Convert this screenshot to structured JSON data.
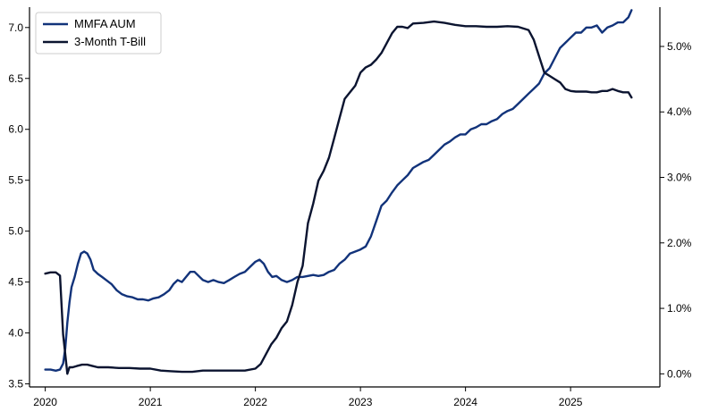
{
  "chart_data": {
    "type": "line",
    "title": "",
    "xlabel": "",
    "ylabel_left": "",
    "ylabel_right": "",
    "x_ticks": [
      "2020",
      "2021",
      "2022",
      "2023",
      "2024",
      "2025"
    ],
    "x_range": [
      2019.85,
      2025.85
    ],
    "y_left_ticks": [
      "3.5",
      "4.0",
      "4.5",
      "5.0",
      "5.5",
      "6.0",
      "6.5",
      "7.0"
    ],
    "y_left_range": [
      3.47,
      7.2
    ],
    "y_right_ticks": [
      "0.0%",
      "1.0%",
      "2.0%",
      "3.0%",
      "4.0%",
      "5.0%"
    ],
    "y_right_range": [
      -0.2,
      5.6
    ],
    "legend_position": "top-left",
    "grid": false,
    "series": [
      {
        "name": "MMFA AUM",
        "axis": "left",
        "color": "#12337a",
        "x": [
          2020.0,
          2020.05,
          2020.1,
          2020.14,
          2020.17,
          2020.19,
          2020.21,
          2020.23,
          2020.25,
          2020.28,
          2020.31,
          2020.34,
          2020.37,
          2020.4,
          2020.43,
          2020.46,
          2020.5,
          2020.54,
          2020.58,
          2020.63,
          2020.68,
          2020.73,
          2020.78,
          2020.83,
          2020.88,
          2020.93,
          2020.98,
          2021.03,
          2021.08,
          2021.13,
          2021.18,
          2021.22,
          2021.26,
          2021.3,
          2021.34,
          2021.38,
          2021.42,
          2021.46,
          2021.5,
          2021.55,
          2021.6,
          2021.65,
          2021.7,
          2021.75,
          2021.8,
          2021.85,
          2021.9,
          2021.95,
          2022.0,
          2022.04,
          2022.08,
          2022.12,
          2022.16,
          2022.2,
          2022.25,
          2022.3,
          2022.35,
          2022.4,
          2022.45,
          2022.5,
          2022.55,
          2022.6,
          2022.65,
          2022.7,
          2022.75,
          2022.8,
          2022.85,
          2022.9,
          2022.95,
          2023.0,
          2023.05,
          2023.1,
          2023.15,
          2023.2,
          2023.25,
          2023.3,
          2023.35,
          2023.4,
          2023.45,
          2023.5,
          2023.55,
          2023.6,
          2023.65,
          2023.7,
          2023.75,
          2023.8,
          2023.85,
          2023.9,
          2023.95,
          2024.0,
          2024.05,
          2024.1,
          2024.15,
          2024.2,
          2024.25,
          2024.3,
          2024.35,
          2024.4,
          2024.45,
          2024.5,
          2024.55,
          2024.6,
          2024.65,
          2024.7,
          2024.75,
          2024.8,
          2024.85,
          2024.9,
          2024.95,
          2025.0,
          2025.05,
          2025.1,
          2025.15,
          2025.2,
          2025.25,
          2025.3,
          2025.35,
          2025.4,
          2025.45,
          2025.5,
          2025.55,
          2025.58
        ],
        "y": [
          3.64,
          3.64,
          3.63,
          3.64,
          3.7,
          3.85,
          4.1,
          4.3,
          4.45,
          4.55,
          4.68,
          4.78,
          4.8,
          4.78,
          4.72,
          4.62,
          4.58,
          4.55,
          4.52,
          4.48,
          4.42,
          4.38,
          4.36,
          4.35,
          4.33,
          4.33,
          4.32,
          4.34,
          4.35,
          4.38,
          4.42,
          4.48,
          4.52,
          4.5,
          4.55,
          4.6,
          4.6,
          4.56,
          4.52,
          4.5,
          4.52,
          4.5,
          4.49,
          4.52,
          4.55,
          4.58,
          4.6,
          4.65,
          4.7,
          4.72,
          4.68,
          4.6,
          4.55,
          4.56,
          4.52,
          4.5,
          4.52,
          4.55,
          4.55,
          4.56,
          4.57,
          4.56,
          4.57,
          4.6,
          4.62,
          4.68,
          4.72,
          4.78,
          4.8,
          4.82,
          4.85,
          4.95,
          5.1,
          5.25,
          5.3,
          5.38,
          5.45,
          5.5,
          5.55,
          5.62,
          5.65,
          5.68,
          5.7,
          5.75,
          5.8,
          5.85,
          5.88,
          5.92,
          5.95,
          5.95,
          6.0,
          6.02,
          6.05,
          6.05,
          6.08,
          6.1,
          6.15,
          6.18,
          6.2,
          6.25,
          6.3,
          6.35,
          6.4,
          6.45,
          6.55,
          6.6,
          6.7,
          6.8,
          6.85,
          6.9,
          6.95,
          6.95,
          7.0,
          7.0,
          7.02,
          6.95,
          7.0,
          7.02,
          7.05,
          7.05,
          7.1,
          7.17
        ]
      },
      {
        "name": "3-Month T-Bill",
        "axis": "right",
        "color": "#0b1430",
        "x": [
          2020.0,
          2020.05,
          2020.1,
          2020.14,
          2020.17,
          2020.19,
          2020.21,
          2020.23,
          2020.26,
          2020.3,
          2020.35,
          2020.4,
          2020.45,
          2020.5,
          2020.6,
          2020.7,
          2020.8,
          2020.9,
          2021.0,
          2021.1,
          2021.2,
          2021.3,
          2021.4,
          2021.5,
          2021.6,
          2021.7,
          2021.8,
          2021.9,
          2022.0,
          2022.05,
          2022.1,
          2022.15,
          2022.2,
          2022.25,
          2022.3,
          2022.35,
          2022.4,
          2022.45,
          2022.5,
          2022.55,
          2022.6,
          2022.65,
          2022.7,
          2022.75,
          2022.8,
          2022.85,
          2022.9,
          2022.95,
          2023.0,
          2023.05,
          2023.1,
          2023.15,
          2023.2,
          2023.25,
          2023.3,
          2023.35,
          2023.4,
          2023.45,
          2023.5,
          2023.6,
          2023.7,
          2023.8,
          2023.9,
          2024.0,
          2024.1,
          2024.2,
          2024.3,
          2024.4,
          2024.5,
          2024.6,
          2024.65,
          2024.7,
          2024.75,
          2024.8,
          2024.85,
          2024.9,
          2024.95,
          2025.0,
          2025.05,
          2025.1,
          2025.15,
          2025.2,
          2025.25,
          2025.3,
          2025.35,
          2025.4,
          2025.45,
          2025.5,
          2025.55,
          2025.58
        ],
        "y": [
          1.53,
          1.55,
          1.55,
          1.5,
          0.6,
          0.3,
          0.0,
          0.1,
          0.1,
          0.12,
          0.14,
          0.14,
          0.12,
          0.1,
          0.1,
          0.09,
          0.09,
          0.08,
          0.08,
          0.05,
          0.04,
          0.03,
          0.03,
          0.05,
          0.05,
          0.05,
          0.05,
          0.05,
          0.08,
          0.15,
          0.3,
          0.45,
          0.55,
          0.7,
          0.8,
          1.05,
          1.4,
          1.65,
          2.3,
          2.6,
          2.95,
          3.1,
          3.3,
          3.6,
          3.9,
          4.2,
          4.3,
          4.4,
          4.6,
          4.68,
          4.72,
          4.8,
          4.9,
          5.05,
          5.2,
          5.3,
          5.3,
          5.28,
          5.35,
          5.36,
          5.38,
          5.36,
          5.33,
          5.31,
          5.31,
          5.3,
          5.3,
          5.31,
          5.3,
          5.25,
          5.1,
          4.85,
          4.6,
          4.55,
          4.5,
          4.45,
          4.35,
          4.32,
          4.31,
          4.31,
          4.31,
          4.3,
          4.3,
          4.32,
          4.32,
          4.35,
          4.32,
          4.3,
          4.3,
          4.22
        ]
      }
    ]
  },
  "legend": {
    "items": [
      {
        "label": "MMFA AUM",
        "color": "#12337a"
      },
      {
        "label": "3-Month T-Bill",
        "color": "#0b1430"
      }
    ]
  }
}
